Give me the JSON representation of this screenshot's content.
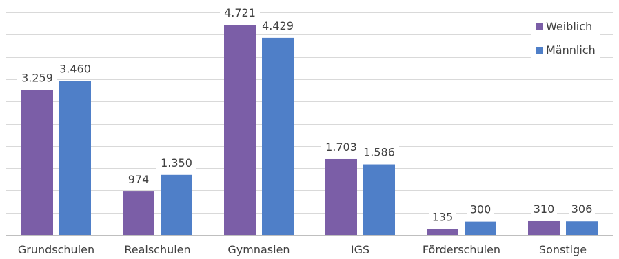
{
  "chart_data": {
    "type": "bar",
    "categories": [
      "Grundschulen",
      "Realschulen",
      "Gymnasien",
      "IGS",
      "Förderschulen",
      "Sonstige"
    ],
    "series": [
      {
        "name": "Weiblich",
        "color": "#7b5ea7",
        "values": [
          3259,
          974,
          4721,
          1703,
          135,
          310
        ],
        "labels": [
          "3.259",
          "974",
          "4.721",
          "1.703",
          "135",
          "310"
        ]
      },
      {
        "name": "Männlich",
        "color": "#4f7fc8",
        "values": [
          3460,
          1350,
          4429,
          1586,
          300,
          306
        ],
        "labels": [
          "3.460",
          "1.350",
          "4.429",
          "1.586",
          "300",
          "306"
        ]
      }
    ],
    "ylim": [
      0,
      5000
    ],
    "grid": true,
    "legend_position": "top-right"
  }
}
